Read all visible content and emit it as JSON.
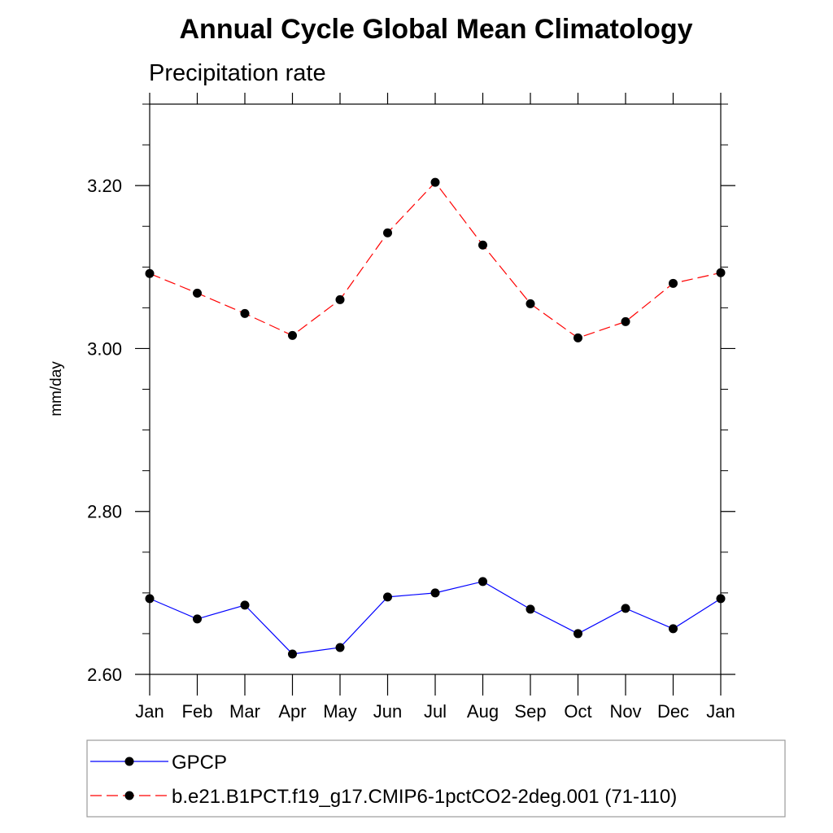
{
  "chart_data": {
    "type": "line",
    "title": "Annual Cycle Global Mean Climatology",
    "subtitle": "Precipitation rate",
    "xlabel": "",
    "ylabel": "mm/day",
    "categories": [
      "Jan",
      "Feb",
      "Mar",
      "Apr",
      "May",
      "Jun",
      "Jul",
      "Aug",
      "Sep",
      "Oct",
      "Nov",
      "Dec",
      "Jan"
    ],
    "ylim": [
      2.6,
      3.3
    ],
    "yticks": [
      2.6,
      2.8,
      3.0,
      3.2
    ],
    "ytick_labels": [
      "2.60",
      "2.80",
      "3.00",
      "3.20"
    ],
    "y_minor_step": 0.05,
    "series": [
      {
        "name": "GPCP",
        "color": "#0000ff",
        "dash": "solid",
        "marker": "filled-circle",
        "values": [
          2.693,
          2.668,
          2.685,
          2.625,
          2.633,
          2.695,
          2.7,
          2.714,
          2.68,
          2.65,
          2.681,
          2.656,
          2.693
        ]
      },
      {
        "name": "b.e21.B1PCT.f19_g17.CMIP6-1pctCO2-2deg.001 (71-110)",
        "color": "#ff0000",
        "dash": "dashed",
        "marker": "filled-circle",
        "values": [
          3.092,
          3.068,
          3.043,
          3.016,
          3.06,
          3.142,
          3.204,
          3.127,
          3.055,
          3.013,
          3.033,
          3.08,
          3.093
        ]
      }
    ],
    "legend_position": "bottom",
    "grid": false
  }
}
